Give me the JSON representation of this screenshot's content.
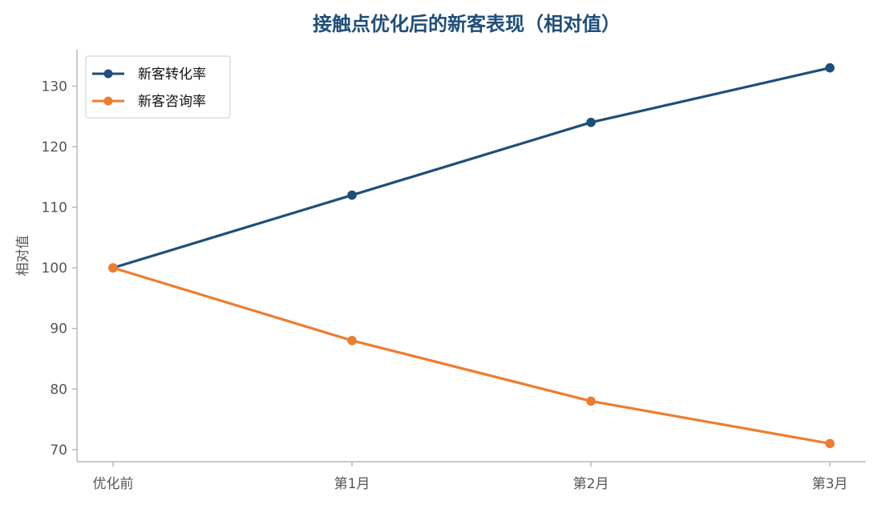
{
  "chart_data": {
    "type": "line",
    "title": "接触点优化后的新客表现（相对值）",
    "xlabel": "",
    "ylabel": "相对值",
    "categories": [
      "优化前",
      "第1月",
      "第2月",
      "第3月"
    ],
    "series": [
      {
        "name": "新客转化率",
        "values": [
          100,
          112,
          124,
          133
        ],
        "color": "#1f4e79"
      },
      {
        "name": "新客咨询率",
        "values": [
          100,
          88,
          78,
          71
        ],
        "color": "#ed7d31"
      }
    ],
    "yticks": [
      70,
      80,
      90,
      100,
      110,
      120,
      130
    ],
    "ylim": [
      68,
      136
    ],
    "grid": false,
    "legend": "top-left"
  }
}
